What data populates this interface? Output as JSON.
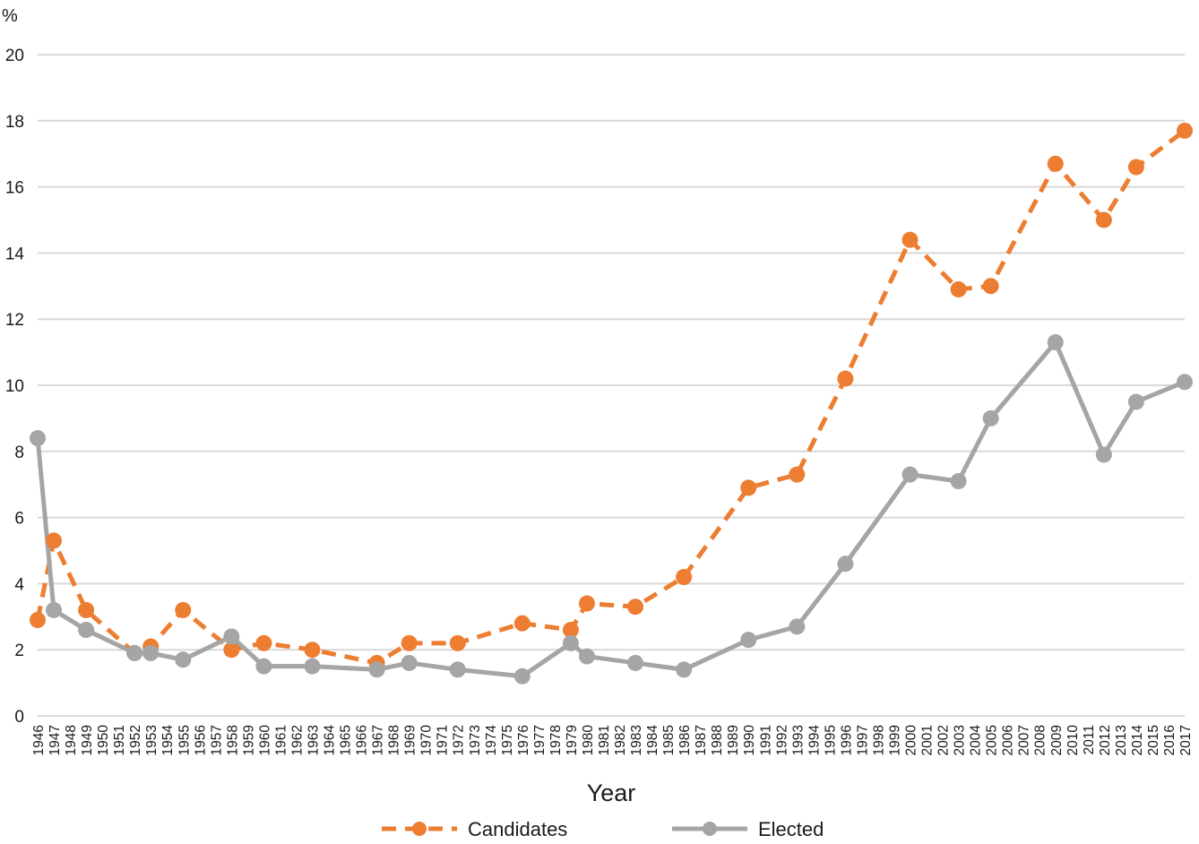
{
  "chart_data": {
    "type": "line",
    "y_unit_label": "%",
    "xlabel": "Year",
    "ylim": [
      0,
      20
    ],
    "yticks": [
      "0",
      "2",
      "4",
      "6",
      "8",
      "10",
      "12",
      "14",
      "16",
      "18",
      "20"
    ],
    "x": [
      "1946",
      "1947",
      "1948",
      "1949",
      "1950",
      "1951",
      "1952",
      "1953",
      "1954",
      "1955",
      "1956",
      "1957",
      "1958",
      "1959",
      "1960",
      "1961",
      "1962",
      "1963",
      "1964",
      "1965",
      "1966",
      "1967",
      "1968",
      "1969",
      "1970",
      "1971",
      "1972",
      "1973",
      "1974",
      "1975",
      "1976",
      "1977",
      "1978",
      "1979",
      "1980",
      "1981",
      "1982",
      "1983",
      "1984",
      "1985",
      "1986",
      "1987",
      "1988",
      "1989",
      "1990",
      "1991",
      "1992",
      "1993",
      "1994",
      "1995",
      "1996",
      "1997",
      "1998",
      "1999",
      "2000",
      "2001",
      "2002",
      "2003",
      "2004",
      "2005",
      "2006",
      "2007",
      "2008",
      "2009",
      "2010",
      "2011",
      "2012",
      "2013",
      "2014",
      "2015",
      "2016",
      "2017"
    ],
    "grid": true,
    "legend_position": "bottom",
    "series": [
      {
        "name": "Candidates",
        "color": "#ed7d31",
        "dash": true,
        "points": [
          {
            "x": "1946",
            "y": 2.9
          },
          {
            "x": "1947",
            "y": 5.3
          },
          {
            "x": "1949",
            "y": 3.2
          },
          {
            "x": "1952",
            "y": 1.9
          },
          {
            "x": "1953",
            "y": 2.1
          },
          {
            "x": "1955",
            "y": 3.2
          },
          {
            "x": "1958",
            "y": 2.0
          },
          {
            "x": "1960",
            "y": 2.2
          },
          {
            "x": "1963",
            "y": 2.0
          },
          {
            "x": "1967",
            "y": 1.6
          },
          {
            "x": "1969",
            "y": 2.2
          },
          {
            "x": "1972",
            "y": 2.2
          },
          {
            "x": "1976",
            "y": 2.8
          },
          {
            "x": "1979",
            "y": 2.6
          },
          {
            "x": "1980",
            "y": 3.4
          },
          {
            "x": "1983",
            "y": 3.3
          },
          {
            "x": "1986",
            "y": 4.2
          },
          {
            "x": "1990",
            "y": 6.9
          },
          {
            "x": "1993",
            "y": 7.3
          },
          {
            "x": "1996",
            "y": 10.2
          },
          {
            "x": "2000",
            "y": 14.4
          },
          {
            "x": "2003",
            "y": 12.9
          },
          {
            "x": "2005",
            "y": 13.0
          },
          {
            "x": "2009",
            "y": 16.7
          },
          {
            "x": "2012",
            "y": 15.0
          },
          {
            "x": "2014",
            "y": 16.6
          },
          {
            "x": "2017",
            "y": 17.7
          }
        ]
      },
      {
        "name": "Elected",
        "color": "#a5a5a5",
        "dash": false,
        "points": [
          {
            "x": "1946",
            "y": 8.4
          },
          {
            "x": "1947",
            "y": 3.2
          },
          {
            "x": "1949",
            "y": 2.6
          },
          {
            "x": "1952",
            "y": 1.9
          },
          {
            "x": "1953",
            "y": 1.9
          },
          {
            "x": "1955",
            "y": 1.7
          },
          {
            "x": "1958",
            "y": 2.4
          },
          {
            "x": "1960",
            "y": 1.5
          },
          {
            "x": "1963",
            "y": 1.5
          },
          {
            "x": "1967",
            "y": 1.4
          },
          {
            "x": "1969",
            "y": 1.6
          },
          {
            "x": "1972",
            "y": 1.4
          },
          {
            "x": "1976",
            "y": 1.2
          },
          {
            "x": "1979",
            "y": 2.2
          },
          {
            "x": "1980",
            "y": 1.8
          },
          {
            "x": "1983",
            "y": 1.6
          },
          {
            "x": "1986",
            "y": 1.4
          },
          {
            "x": "1990",
            "y": 2.3
          },
          {
            "x": "1993",
            "y": 2.7
          },
          {
            "x": "1996",
            "y": 4.6
          },
          {
            "x": "2000",
            "y": 7.3
          },
          {
            "x": "2003",
            "y": 7.1
          },
          {
            "x": "2005",
            "y": 9.0
          },
          {
            "x": "2009",
            "y": 11.3
          },
          {
            "x": "2012",
            "y": 7.9
          },
          {
            "x": "2014",
            "y": 9.5
          },
          {
            "x": "2017",
            "y": 10.1
          }
        ]
      }
    ]
  }
}
